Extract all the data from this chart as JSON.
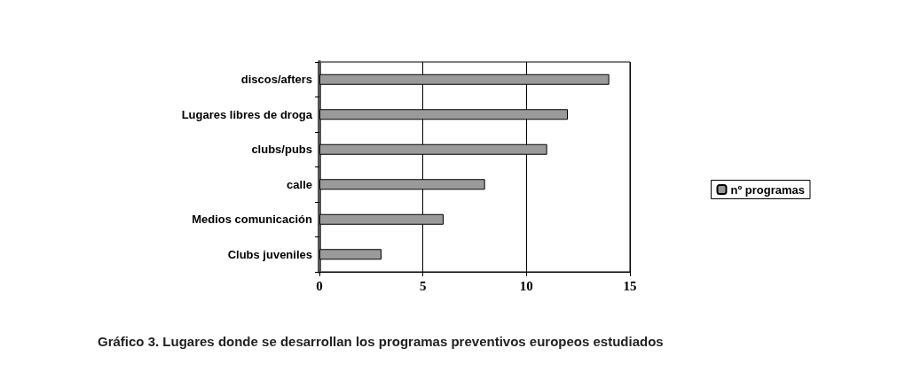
{
  "chart_data": {
    "type": "bar",
    "orientation": "horizontal",
    "title": "Gráfico 3. Lugares donde se desarrollan los programas preventivos europeos estudiados",
    "categories": [
      "discos/afters",
      "Lugares libres de droga",
      "clubs/pubs",
      "calle",
      "Medios comunicación",
      "Clubs juveniles"
    ],
    "series": [
      {
        "name": "nº programas",
        "color": "#9a9a9a",
        "values": [
          14,
          12,
          11,
          8,
          6,
          3
        ]
      }
    ],
    "xlim": [
      0,
      15
    ],
    "xticks": [
      0,
      5,
      10,
      15
    ],
    "grid": "x",
    "legend": "right"
  }
}
